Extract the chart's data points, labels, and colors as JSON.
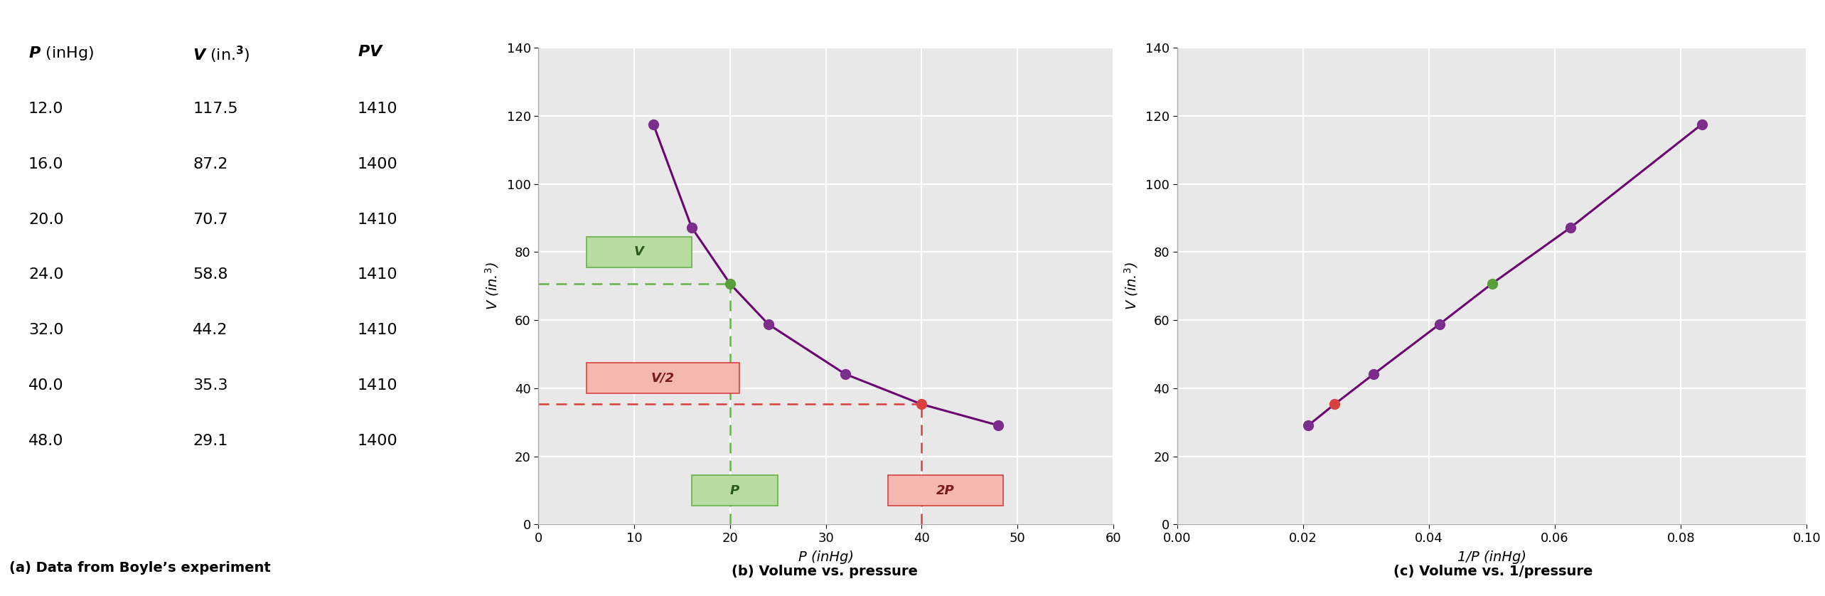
{
  "P": [
    12.0,
    16.0,
    20.0,
    24.0,
    32.0,
    40.0,
    48.0
  ],
  "V": [
    117.5,
    87.2,
    70.7,
    58.8,
    44.2,
    35.3,
    29.1
  ],
  "PV": [
    1410,
    1400,
    1410,
    1410,
    1410,
    1410,
    1400
  ],
  "bg_color": "#e8e8e8",
  "line_color": "#6a0572",
  "dot_color_default": "#7b2d8b",
  "dot_color_green": "#5a9e3a",
  "dot_color_red": "#d94040",
  "title_a": "(a) Data from Boyle’s experiment",
  "title_b": "(b) Volume vs. pressure",
  "title_c": "(c) Volume vs. 1/pressure",
  "xlabel_b": "P (inHg)",
  "xlabel_c": "1/P (inHg)",
  "P_ref": 20.0,
  "V_ref": 70.7,
  "P2_ref": 40.0,
  "V2_ref": 35.3,
  "ylim_b": [
    0,
    140
  ],
  "xlim_b": [
    0,
    60
  ],
  "ylim_c": [
    0,
    140
  ],
  "xlim_c": [
    0.0,
    0.1
  ],
  "yticks_b": [
    0,
    20,
    40,
    60,
    80,
    100,
    120,
    140
  ],
  "xticks_b": [
    0,
    10,
    20,
    30,
    40,
    50,
    60
  ],
  "yticks_c": [
    0,
    20,
    40,
    60,
    80,
    100,
    120,
    140
  ],
  "xticks_c": [
    0.0,
    0.02,
    0.04,
    0.06,
    0.08,
    0.1
  ],
  "green_box_face": "#b8dba0",
  "green_box_edge": "#6ab04c",
  "green_text": "#2a5a1a",
  "red_box_face": "#f5b8b0",
  "red_box_edge": "#d94040",
  "red_text": "#7a1a1a"
}
